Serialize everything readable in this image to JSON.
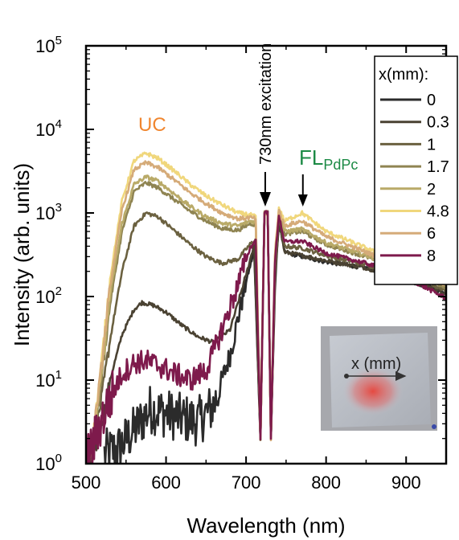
{
  "chart_data": {
    "type": "line",
    "title": "",
    "xlabel": "Wavelength (nm)",
    "ylabel": "Intensity (arb. units)",
    "x_scale": "linear",
    "y_scale": "log",
    "xlim": [
      500,
      950
    ],
    "ylim": [
      1,
      100000
    ],
    "x_ticks": [
      "500",
      "600",
      "700",
      "800",
      "900"
    ],
    "y_ticks": [
      {
        "base": "10",
        "exp": "0"
      },
      {
        "base": "10",
        "exp": "1"
      },
      {
        "base": "10",
        "exp": "2"
      },
      {
        "base": "10",
        "exp": "3"
      },
      {
        "base": "10",
        "exp": "4"
      },
      {
        "base": "10",
        "exp": "5"
      }
    ],
    "legend_title": "x(mm):",
    "legend_position": "top-right",
    "series": [
      {
        "name": "0",
        "color": "#2b2b2b",
        "noisy": true,
        "x": [
          523,
          540,
          560,
          580,
          600,
          620,
          640,
          660,
          680,
          700,
          710,
          718,
          723,
          727,
          731,
          736,
          741,
          748,
          770,
          800,
          850,
          900,
          950
        ],
        "y": [
          1.3,
          1.5,
          2.5,
          4.5,
          4,
          3.5,
          3.2,
          5,
          20,
          150,
          350,
          2,
          1000,
          1000,
          2,
          120,
          800,
          340,
          300,
          260,
          220,
          160,
          110
        ]
      },
      {
        "name": "0.3",
        "color": "#4a4232",
        "x": [
          500,
          508,
          518,
          530,
          545,
          560,
          570,
          585,
          600,
          620,
          640,
          660,
          680,
          700,
          710,
          718,
          723,
          727,
          731,
          736,
          741,
          748,
          770,
          800,
          850,
          900,
          950
        ],
        "y": [
          0.9,
          1.1,
          2.5,
          10,
          35,
          70,
          85,
          78,
          65,
          45,
          33,
          28,
          40,
          180,
          420,
          2,
          1000,
          1000,
          2,
          150,
          800,
          340,
          310,
          270,
          220,
          160,
          110
        ]
      },
      {
        "name": "1",
        "color": "#6b6140",
        "x": [
          500,
          508,
          518,
          530,
          545,
          560,
          575,
          590,
          610,
          630,
          650,
          670,
          690,
          705,
          712,
          718,
          723,
          727,
          731,
          736,
          741,
          748,
          770,
          800,
          850,
          900,
          950
        ],
        "y": [
          0.9,
          1.5,
          5,
          30,
          200,
          700,
          1000,
          900,
          620,
          420,
          300,
          250,
          280,
          420,
          480,
          2,
          1000,
          1000,
          2,
          200,
          900,
          400,
          380,
          310,
          240,
          175,
          120
        ]
      },
      {
        "name": "1.7",
        "color": "#8f8452",
        "x": [
          500,
          508,
          518,
          530,
          545,
          560,
          575,
          590,
          610,
          630,
          650,
          670,
          690,
          705,
          712,
          718,
          723,
          727,
          731,
          736,
          741,
          748,
          770,
          800,
          850,
          900,
          950
        ],
        "y": [
          0.9,
          1.6,
          8,
          80,
          600,
          1800,
          2300,
          2000,
          1450,
          1050,
          800,
          650,
          620,
          750,
          720,
          2,
          1000,
          1000,
          2,
          250,
          1000,
          560,
          600,
          420,
          300,
          200,
          130
        ]
      },
      {
        "name": "2",
        "color": "#b9aa68",
        "x": [
          500,
          508,
          518,
          530,
          545,
          560,
          575,
          590,
          610,
          630,
          650,
          670,
          690,
          705,
          712,
          718,
          723,
          727,
          731,
          736,
          741,
          748,
          770,
          800,
          850,
          900,
          950
        ],
        "y": [
          0.9,
          1.7,
          9,
          100,
          750,
          2200,
          2700,
          2400,
          1700,
          1200,
          900,
          750,
          700,
          800,
          780,
          2,
          1000,
          1000,
          2,
          270,
          1050,
          600,
          640,
          440,
          310,
          205,
          135
        ]
      },
      {
        "name": "4.8",
        "color": "#f0d77c",
        "x": [
          500,
          508,
          518,
          530,
          545,
          560,
          575,
          590,
          610,
          630,
          650,
          670,
          690,
          705,
          712,
          718,
          723,
          727,
          731,
          736,
          741,
          748,
          770,
          800,
          850,
          900,
          950
        ],
        "y": [
          0.9,
          1.8,
          12,
          160,
          1400,
          4200,
          5200,
          4500,
          3200,
          2200,
          1600,
          1250,
          1000,
          950,
          900,
          2,
          1000,
          1000,
          2,
          320,
          1150,
          800,
          1000,
          600,
          380,
          230,
          150
        ]
      },
      {
        "name": "6",
        "color": "#d5ab79",
        "x": [
          500,
          508,
          518,
          530,
          545,
          560,
          575,
          590,
          610,
          630,
          650,
          670,
          690,
          705,
          712,
          718,
          723,
          727,
          731,
          736,
          741,
          748,
          770,
          800,
          850,
          900,
          950
        ],
        "y": [
          0.9,
          1.8,
          11,
          130,
          1100,
          3300,
          4000,
          3500,
          2500,
          1750,
          1300,
          1000,
          850,
          880,
          850,
          2,
          1000,
          1000,
          2,
          300,
          1100,
          700,
          800,
          520,
          340,
          215,
          140
        ]
      },
      {
        "name": "8",
        "color": "#7e1a4c",
        "noisy": true,
        "x": [
          500,
          508,
          518,
          530,
          545,
          560,
          575,
          590,
          610,
          630,
          650,
          670,
          690,
          705,
          712,
          718,
          723,
          727,
          731,
          736,
          741,
          748,
          770,
          800,
          850,
          900,
          950
        ],
        "y": [
          1.2,
          1.6,
          3,
          6,
          12,
          16,
          17,
          15,
          12,
          10,
          13,
          40,
          140,
          380,
          470,
          2,
          1000,
          1000,
          2,
          250,
          950,
          450,
          460,
          330,
          250,
          170,
          95
        ]
      }
    ],
    "annotations": {
      "uc_label": "UC",
      "uc_color": "#f0862f",
      "excitation_label": "730nm excitation",
      "excitation_x": 730,
      "excitation_arrow_tip_y": 1000,
      "fl_label": "FL",
      "fl_subscript": "PdPc",
      "fl_color": "#1c8a45",
      "fl_x": 775,
      "fl_arrow_tip_y": 1000
    },
    "inset": {
      "label": "x (mm)",
      "description_colors": {
        "substrate": "#a9aab0",
        "film": "#bfc3cb",
        "spot": "#e24a3d"
      }
    }
  }
}
